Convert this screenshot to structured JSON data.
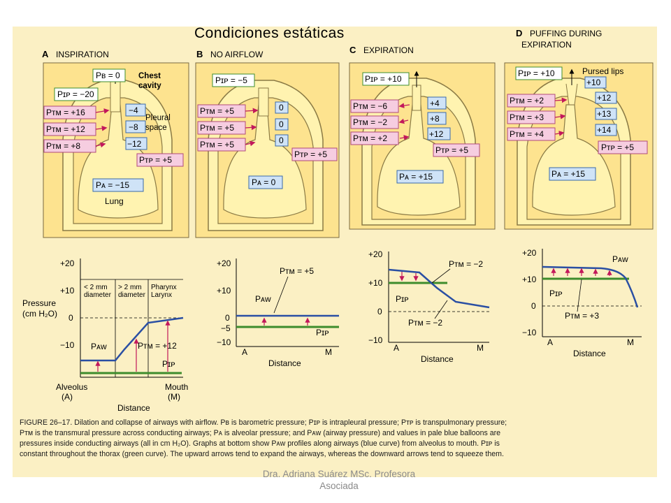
{
  "slide_title": "Condiciones estáticas",
  "footer": {
    "line1": "Dra. Adriana Suárez MSc. Profesora",
    "line2": "Asociada"
  },
  "colors": {
    "panel": "#fde38f",
    "lung_fill": "#fff3b0",
    "page_bg": "#fbf0c4",
    "airway_curve": "#2a4fa3",
    "pleural_line": "#3d8c2c",
    "arrow": "#c2185b",
    "balloon": "#cfe3f7",
    "pink_box": "#f6cde0"
  },
  "panels": [
    {
      "letter": "A",
      "title": "INSPIRATION",
      "pb": "Pʙ = 0",
      "pip": "Pɪᴘ = −20",
      "chest": [
        "Chest",
        "cavity"
      ],
      "pleural": [
        "Pleural",
        "space"
      ],
      "ptm": [
        "Pᴛᴍ = +16",
        "Pᴛᴍ = +12",
        "Pᴛᴍ = +8"
      ],
      "balloons": [
        "−4",
        "−8",
        "−12"
      ],
      "ptp": "Pᴛᴘ = +5",
      "pa": "Pᴀ = −15",
      "lung": "Lung"
    },
    {
      "letter": "B",
      "title": "NO AIRFLOW",
      "pip": "Pɪᴘ = −5",
      "ptm": [
        "Pᴛᴍ = +5",
        "Pᴛᴍ = +5",
        "Pᴛᴍ = +5"
      ],
      "balloons": [
        "0",
        "0",
        "0"
      ],
      "ptp": "Pᴛᴘ = +5",
      "pa": "Pᴀ = 0"
    },
    {
      "letter": "C",
      "title": "EXPIRATION",
      "pip": "Pɪᴘ = +10",
      "ptm": [
        "Pᴛᴍ = −6",
        "Pᴛᴍ = −2",
        "Pᴛᴍ = +2"
      ],
      "balloons": [
        "+4",
        "+8",
        "+12"
      ],
      "ptp": "Pᴛᴘ = +5",
      "pa": "Pᴀ = +15"
    },
    {
      "letter": "D",
      "title": "PUFFING DURING",
      "title2": "EXPIRATION",
      "pip": "Pɪᴘ = +10",
      "pursed": "Pursed lips",
      "ptm": [
        "Pᴛᴍ = +2",
        "Pᴛᴍ = +3",
        "Pᴛᴍ = +4"
      ],
      "balloons": [
        "+10",
        "+12",
        "+13",
        "+14"
      ],
      "ptp": "Pᴛᴘ = +5",
      "pa": "Pᴀ = +15"
    }
  ],
  "graphs": {
    "ylabel": [
      "Pressure",
      "(cm H₂O)"
    ],
    "ticks": [
      "+20",
      "+10",
      "0",
      "−10"
    ],
    "ticks_b": [
      "+20",
      "+10",
      "0",
      "−5",
      "−10"
    ],
    "a": {
      "zones": [
        "< 2 mm",
        "diameter",
        "> 2 mm",
        "diameter",
        "Pharynx",
        "Larynx"
      ],
      "paw": "Pᴀᴡ",
      "ptm": "Pᴛᴍ = +12",
      "pip": "Pɪᴘ",
      "alveolus": [
        "Alveolus",
        "(A)"
      ],
      "mouth": [
        "Mouth",
        "(M)"
      ],
      "xlabel": "Distance"
    },
    "b": {
      "ptm": "Pᴛᴍ = +5",
      "paw": "Pᴀᴡ",
      "pip": "Pɪᴘ",
      "a": "A",
      "m": "M",
      "xlabel": "Distance"
    },
    "c": {
      "ptm1": "Pᴛᴍ = −2",
      "ptm2": "Pᴛᴍ = −2",
      "pip": "Pɪᴘ",
      "a": "A",
      "m": "M",
      "xlabel": "Distance"
    },
    "d": {
      "paw": "Pᴀᴡ",
      "pip": "Pɪᴘ",
      "ptm": "Pᴛᴍ = +3",
      "a": "A",
      "m": "M",
      "xlabel": "Distance"
    }
  },
  "caption": {
    "line1": "FIGURE 26–17.  Dilation and collapse of airways with airflow. Pʙ is barometric pressure; Pɪᴘ is intrapleural pressure; Pᴛᴘ is transpulmonary pressure;",
    "line2": "Pᴛᴍ is the transmural pressure across conducting airways; Pᴀ is alveolar pressure; and Pᴀᴡ (airway pressure) and values in pale blue balloons are",
    "line3": "pressures inside conducting airways (all in cm H₂O). Graphs at bottom show Pᴀᴡ profiles along airways (blue curve) from alveolus to mouth. Pɪᴘ is",
    "line4": "constant throughout the thorax (green curve). The upward arrows tend to expand the airways, whereas the downward arrows tend to squeeze them."
  }
}
